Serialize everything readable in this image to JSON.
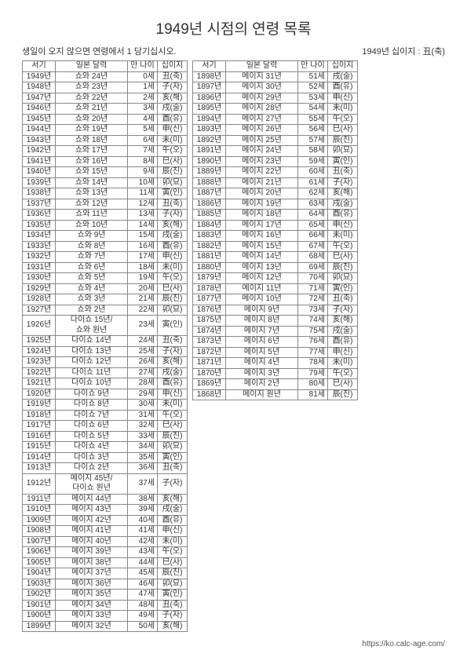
{
  "title": "1949년 시점의 연령 목록",
  "note_left": "생일이 오지 않으면 연령에서 1 당기십시오.",
  "note_right": "1949년 십이지 : 丑(축)",
  "footer": "https://ko.calc-age.com/",
  "headers": {
    "west": "서기",
    "jp": "일본 달력",
    "age": "만 나이",
    "zod": "십이지"
  },
  "left": [
    [
      "1949년",
      "쇼와 24년",
      "0세",
      "丑(축)"
    ],
    [
      "1948년",
      "쇼와 23년",
      "1세",
      "子(자)"
    ],
    [
      "1947년",
      "쇼와 22년",
      "2세",
      "亥(해)"
    ],
    [
      "1946년",
      "쇼와 21년",
      "3세",
      "戌(술)"
    ],
    [
      "1945년",
      "쇼와 20년",
      "4세",
      "酉(유)"
    ],
    [
      "1944년",
      "쇼와 19년",
      "5세",
      "申(신)"
    ],
    [
      "1943년",
      "쇼와 18년",
      "6세",
      "未(미)"
    ],
    [
      "1942년",
      "쇼와 17년",
      "7세",
      "午(오)"
    ],
    [
      "1941년",
      "쇼와 16년",
      "8세",
      "巳(사)"
    ],
    [
      "1940년",
      "쇼와 15년",
      "9세",
      "辰(진)"
    ],
    [
      "1939년",
      "쇼와 14년",
      "10세",
      "卯(묘)"
    ],
    [
      "1938년",
      "쇼와 13년",
      "11세",
      "寅(인)"
    ],
    [
      "1937년",
      "쇼와 12년",
      "12세",
      "丑(축)"
    ],
    [
      "1936년",
      "쇼와 11년",
      "13세",
      "子(자)"
    ],
    [
      "1935년",
      "쇼와 10년",
      "14세",
      "亥(해)"
    ],
    [
      "1934년",
      "쇼와 9년",
      "15세",
      "戌(술)"
    ],
    [
      "1933년",
      "쇼와 8년",
      "16세",
      "酉(유)"
    ],
    [
      "1932년",
      "쇼와 7년",
      "17세",
      "申(신)"
    ],
    [
      "1931년",
      "쇼와 6년",
      "18세",
      "未(미)"
    ],
    [
      "1930년",
      "쇼와 5년",
      "19세",
      "午(오)"
    ],
    [
      "1929년",
      "쇼와 4년",
      "20세",
      "巳(사)"
    ],
    [
      "1928년",
      "쇼와 3년",
      "21세",
      "辰(진)"
    ],
    [
      "1927년",
      "쇼와 2년",
      "22세",
      "卯(묘)"
    ],
    [
      "1926년",
      "다이쇼 15년/\n쇼와 원년",
      "23세",
      "寅(인)"
    ],
    [
      "1925년",
      "다이쇼 14년",
      "24세",
      "丑(축)"
    ],
    [
      "1924년",
      "다이쇼 13년",
      "25세",
      "子(자)"
    ],
    [
      "1923년",
      "다이쇼 12년",
      "26세",
      "亥(해)"
    ],
    [
      "1922년",
      "다이쇼 11년",
      "27세",
      "戌(술)"
    ],
    [
      "1921년",
      "다이쇼 10년",
      "28세",
      "酉(유)"
    ],
    [
      "1920년",
      "다이쇼 9년",
      "29세",
      "申(신)"
    ],
    [
      "1919년",
      "다이쇼 8년",
      "30세",
      "未(미)"
    ],
    [
      "1918년",
      "다이쇼 7년",
      "31세",
      "午(오)"
    ],
    [
      "1917년",
      "다이쇼 6년",
      "32세",
      "巳(사)"
    ],
    [
      "1916년",
      "다이쇼 5년",
      "33세",
      "辰(진)"
    ],
    [
      "1915년",
      "다이쇼 4년",
      "34세",
      "卯(묘)"
    ],
    [
      "1914년",
      "다이쇼 3년",
      "35세",
      "寅(인)"
    ],
    [
      "1913년",
      "다이쇼 2년",
      "36세",
      "丑(축)"
    ],
    [
      "1912년",
      "메이지 45년/\n다이쇼 원년",
      "37세",
      "子(자)"
    ],
    [
      "1911년",
      "메이지 44년",
      "38세",
      "亥(해)"
    ],
    [
      "1910년",
      "메이지 43년",
      "39세",
      "戌(술)"
    ],
    [
      "1909년",
      "메이지 42년",
      "40세",
      "酉(유)"
    ],
    [
      "1908년",
      "메이지 41년",
      "41세",
      "申(신)"
    ],
    [
      "1907년",
      "메이지 40년",
      "42세",
      "未(미)"
    ],
    [
      "1906년",
      "메이지 39년",
      "43세",
      "午(오)"
    ],
    [
      "1905년",
      "메이지 38년",
      "44세",
      "巳(사)"
    ],
    [
      "1904년",
      "메이지 37년",
      "45세",
      "辰(진)"
    ],
    [
      "1903년",
      "메이지 36년",
      "46세",
      "卯(묘)"
    ],
    [
      "1902년",
      "메이지 35년",
      "47세",
      "寅(인)"
    ],
    [
      "1901년",
      "메이지 34년",
      "48세",
      "丑(축)"
    ],
    [
      "1900년",
      "메이지 33년",
      "49세",
      "子(자)"
    ],
    [
      "1899년",
      "메이지 32년",
      "50세",
      "亥(해)"
    ]
  ],
  "right": [
    [
      "1898년",
      "메이지 31년",
      "51세",
      "戌(술)"
    ],
    [
      "1897년",
      "메이지 30년",
      "52세",
      "酉(유)"
    ],
    [
      "1896년",
      "메이지 29년",
      "53세",
      "申(신)"
    ],
    [
      "1895년",
      "메이지 28년",
      "54세",
      "未(미)"
    ],
    [
      "1894년",
      "메이지 27년",
      "55세",
      "午(오)"
    ],
    [
      "1893년",
      "메이지 26년",
      "56세",
      "巳(사)"
    ],
    [
      "1892년",
      "메이지 25년",
      "57세",
      "辰(진)"
    ],
    [
      "1891년",
      "메이지 24년",
      "58세",
      "卯(묘)"
    ],
    [
      "1890년",
      "메이지 23년",
      "59세",
      "寅(인)"
    ],
    [
      "1889년",
      "메이지 22년",
      "60세",
      "丑(축)"
    ],
    [
      "1888년",
      "메이지 21년",
      "61세",
      "子(자)"
    ],
    [
      "1887년",
      "메이지 20년",
      "62세",
      "亥(해)"
    ],
    [
      "1886년",
      "메이지 19년",
      "63세",
      "戌(술)"
    ],
    [
      "1885년",
      "메이지 18년",
      "64세",
      "酉(유)"
    ],
    [
      "1884년",
      "메이지 17년",
      "65세",
      "申(신)"
    ],
    [
      "1883년",
      "메이지 16년",
      "66세",
      "未(미)"
    ],
    [
      "1882년",
      "메이지 15년",
      "67세",
      "午(오)"
    ],
    [
      "1881년",
      "메이지 14년",
      "68세",
      "巳(사)"
    ],
    [
      "1880년",
      "메이지 13년",
      "69세",
      "辰(진)"
    ],
    [
      "1879년",
      "메이지 12년",
      "70세",
      "卯(묘)"
    ],
    [
      "1878년",
      "메이지 11년",
      "71세",
      "寅(인)"
    ],
    [
      "1877년",
      "메이지 10년",
      "72세",
      "丑(축)"
    ],
    [
      "1876년",
      "메이지 9년",
      "73세",
      "子(자)"
    ],
    [
      "1875년",
      "메이지 8년",
      "74세",
      "亥(해)"
    ],
    [
      "1874년",
      "메이지 7년",
      "75세",
      "戌(술)"
    ],
    [
      "1873년",
      "메이지 6년",
      "76세",
      "酉(유)"
    ],
    [
      "1872년",
      "메이지 5년",
      "77세",
      "申(신)"
    ],
    [
      "1871년",
      "메이지 4년",
      "78세",
      "未(미)"
    ],
    [
      "1870년",
      "메이지 3년",
      "79세",
      "午(오)"
    ],
    [
      "1869년",
      "메이지 2년",
      "80세",
      "巳(사)"
    ],
    [
      "1868년",
      "메이지 원년",
      "81세",
      "辰(진)"
    ]
  ]
}
